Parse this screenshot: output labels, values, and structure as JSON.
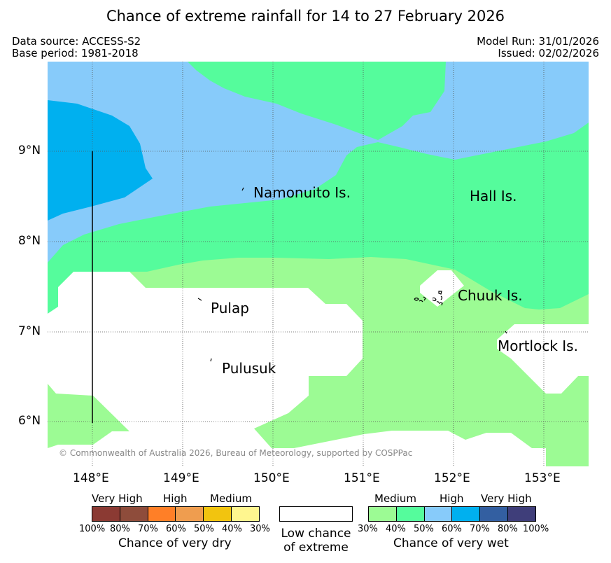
{
  "title": "Chance of extreme rainfall for 14 to 27 February 2026",
  "data_source": "Data source: ACCESS-S2",
  "base_period": "Base period: 1981-2018",
  "model_run": "Model Run: 31/01/2026",
  "issued": "Issued: 02/02/2026",
  "copyright": "© Commonwealth of Australia 2026, Bureau of Meteorology, supported by COSPPac",
  "axes": {
    "lat_labels": [
      "9°N",
      "8°N",
      "7°N",
      "6°N"
    ],
    "lon_labels": [
      "148°E",
      "149°E",
      "150°E",
      "151°E",
      "152°E",
      "153°E"
    ]
  },
  "places": {
    "namonuito": "Namonuito Is.",
    "hall": "Hall Is.",
    "pulap": "Pulap",
    "chuuk": "Chuuk Is.",
    "mortlock": "Mortlock Is.",
    "pulusuk": "Pulusuk"
  },
  "legend": {
    "dry": {
      "levels": [
        "Very High",
        "High",
        "Medium"
      ],
      "percents": [
        "100%",
        "80%",
        "70%",
        "60%",
        "50%",
        "40%",
        "30%"
      ],
      "caption": "Chance of very dry",
      "colors": [
        "#8b3a33",
        "#8e4c3b",
        "#ff7f27",
        "#ef9d4f",
        "#f2c40f",
        "#fff68f"
      ]
    },
    "low": {
      "line1": "Low chance",
      "line2": "of extreme",
      "color": "#ffffff"
    },
    "wet": {
      "levels": [
        "Medium",
        "High",
        "Very High"
      ],
      "percents": [
        "30%",
        "40%",
        "50%",
        "60%",
        "70%",
        "80%",
        "100%"
      ],
      "caption": "Chance of very wet",
      "colors": [
        "#9cfb94",
        "#55fc9c",
        "#87cbfa",
        "#00b0ef",
        "#335fa1",
        "#3f3e7a"
      ]
    }
  }
}
